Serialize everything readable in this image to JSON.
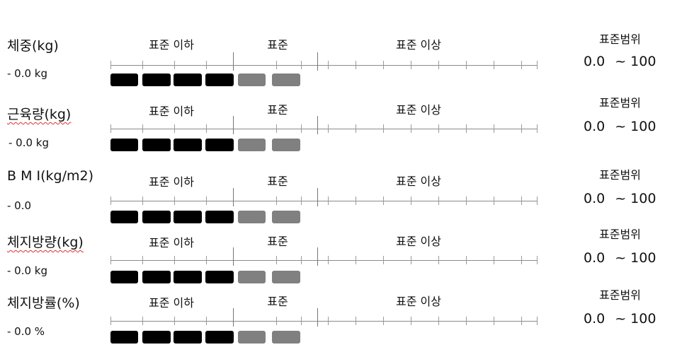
{
  "zones": {
    "below": "표준 이하",
    "normal": "표준",
    "above": "표준 이상"
  },
  "range_title": "표준범위",
  "metrics": [
    {
      "name": "체중(kg)",
      "value": "- 0.0 kg",
      "range_min": "0.0",
      "range_sep": "~",
      "range_max": "100",
      "filled_segments": 4,
      "total_segments": 6
    },
    {
      "name": "근육량(kg)",
      "value": "- 0.0 kg",
      "range_min": "0.0",
      "range_sep": "~",
      "range_max": "100",
      "filled_segments": 4,
      "total_segments": 6
    },
    {
      "name": "B M I(kg/m2)",
      "value": "- 0.0",
      "range_min": "0.0",
      "range_sep": "~",
      "range_max": "100",
      "filled_segments": 4,
      "total_segments": 6
    },
    {
      "name": "체지방량(kg)",
      "value": "- 0.0 kg",
      "range_min": "0.0",
      "range_sep": "~",
      "range_max": "100",
      "filled_segments": 4,
      "total_segments": 6
    },
    {
      "name": "체지방률(%)",
      "value": "- 0.0 %",
      "range_min": "0.0",
      "range_sep": "~",
      "range_max": "100",
      "filled_segments": 4,
      "total_segments": 6
    }
  ],
  "colors": {
    "filled": "#000000",
    "unfilled": "#808080",
    "axis": "#8a8a8a"
  }
}
